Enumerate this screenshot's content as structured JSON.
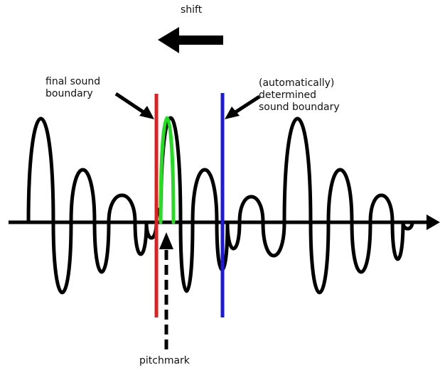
{
  "labels": {
    "shift": "shift",
    "final_boundary": [
      "final sound",
      "boundary"
    ],
    "auto_boundary": [
      "(automatically)",
      "determined",
      "sound boundary"
    ],
    "pitchmark": "pitchmark"
  },
  "colors": {
    "waveform": "#000000",
    "final_boundary": "#e02020",
    "auto_boundary": "#1a1ad8",
    "pitchmark": "#22dd22",
    "arrows": "#000000"
  }
}
